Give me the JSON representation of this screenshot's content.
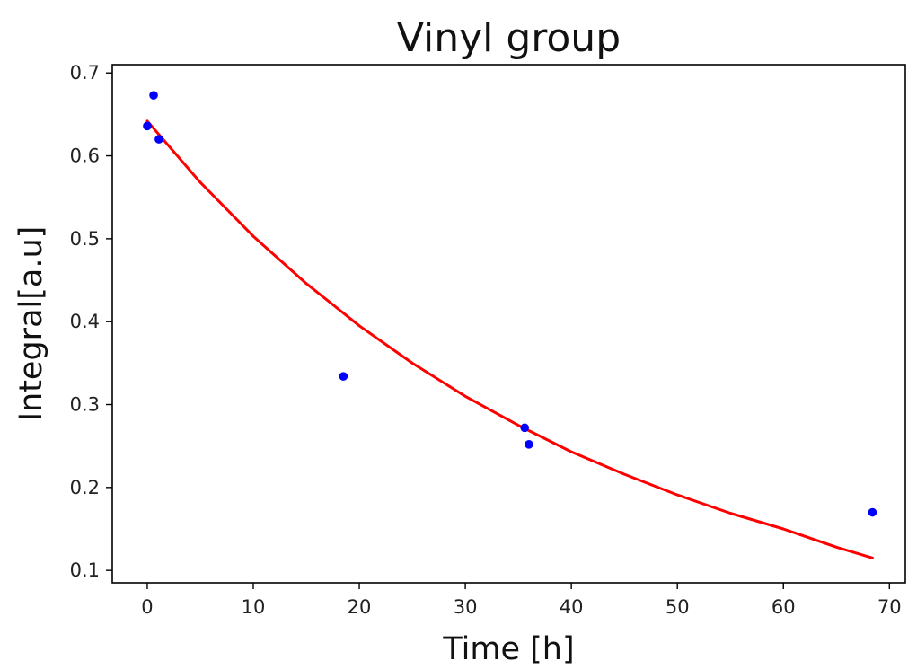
{
  "chart_data": {
    "type": "scatter",
    "title": "Vinyl group",
    "xlabel": "Time [h]",
    "ylabel": "Integral[a.u]",
    "xlim": [
      -3.3,
      71.5
    ],
    "ylim": [
      0.085,
      0.71
    ],
    "xticks": [
      0,
      10,
      20,
      30,
      40,
      50,
      60,
      70
    ],
    "yticks": [
      0.1,
      0.2,
      0.3,
      0.4,
      0.5,
      0.6,
      0.7
    ],
    "grid": false,
    "legend": "none",
    "series": [
      {
        "type": "scatter",
        "color": "#0000ff",
        "x": [
          0.0,
          0.6,
          1.1,
          18.5,
          35.6,
          36.0,
          68.4
        ],
        "y": [
          0.636,
          0.673,
          0.62,
          0.334,
          0.272,
          0.252,
          0.17
        ]
      },
      {
        "type": "line",
        "color": "#ff0000",
        "fit": "exponential",
        "x": [
          0,
          5,
          10,
          15,
          20,
          25,
          30,
          35,
          40,
          45,
          50,
          55,
          60,
          65,
          68.4
        ],
        "y": [
          0.642,
          0.568,
          0.503,
          0.446,
          0.395,
          0.35,
          0.31,
          0.275,
          0.243,
          0.216,
          0.191,
          0.169,
          0.15,
          0.128,
          0.115
        ]
      }
    ]
  }
}
